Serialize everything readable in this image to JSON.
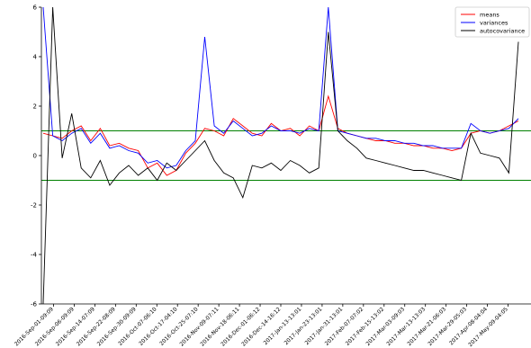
{
  "chart_data": {
    "type": "line",
    "ylim": [
      -6,
      6
    ],
    "yticks": [
      -6,
      -4,
      -2,
      0,
      2,
      4,
      6
    ],
    "grid": false,
    "legend_position": "top-right",
    "xtick_labels": [
      "2016-Sep-01-09:09",
      "2016-Sep-06-09:09",
      "2016-Sep-14-07:09",
      "2016-Sep-22-08:09",
      "2016-Sep-30-09:09",
      "2016-Oct-07-06:10",
      "2016-Oct-17-04:10",
      "2016-Oct-25-07:10",
      "2016-Nov-09-07:11",
      "2016-Nov-18-06:11",
      "2016-Dec-01-06:12",
      "2016-Dec-14-16:12",
      "2017-Jan-13-13:01",
      "2017-Jan-23-13:01",
      "2017-Jan-31-13:01",
      "2017-Feb-07-07:02",
      "2017-Feb-15-13:02",
      "2017-Mar-03-09:03",
      "2017-Mar-13-13:03",
      "2017-Mar-21-06:03",
      "2017-Mar-29-05:03",
      "2017-Apr-08-04:04",
      "2017-May-09-04:05"
    ],
    "hlines": [
      {
        "y": 1,
        "color": "#008000"
      },
      {
        "y": -1,
        "color": "#008000"
      }
    ],
    "x_index": [
      0,
      1,
      2,
      3,
      4,
      5,
      6,
      7,
      8,
      9,
      10,
      11,
      12,
      13,
      14,
      15,
      16,
      17,
      18,
      19,
      20,
      21,
      22,
      23,
      24,
      25,
      26,
      27,
      28,
      29,
      30,
      31,
      32,
      33,
      34,
      35,
      36,
      37,
      38,
      39,
      40,
      41,
      42,
      43,
      44,
      45,
      46,
      47,
      48,
      49,
      50
    ],
    "series": [
      {
        "name": "means",
        "color": "#ff0000",
        "values": [
          0.9,
          0.8,
          0.7,
          1.0,
          1.2,
          0.6,
          1.1,
          0.4,
          0.5,
          0.3,
          0.2,
          -0.5,
          -0.3,
          -0.8,
          -0.6,
          0.1,
          0.5,
          1.1,
          1.0,
          0.8,
          1.5,
          1.2,
          0.9,
          0.8,
          1.3,
          1.0,
          1.1,
          0.8,
          1.2,
          1.0,
          2.4,
          1.1,
          0.9,
          0.8,
          0.7,
          0.6,
          0.6,
          0.5,
          0.5,
          0.4,
          0.4,
          0.3,
          0.3,
          0.2,
          0.3,
          0.9,
          1.0,
          0.9,
          1.0,
          1.2,
          1.4
        ]
      },
      {
        "name": "variances",
        "color": "#0000ff",
        "values": [
          6.0,
          0.8,
          0.6,
          0.9,
          1.1,
          0.5,
          0.9,
          0.3,
          0.4,
          0.2,
          0.1,
          -0.3,
          -0.2,
          -0.5,
          -0.4,
          0.2,
          0.6,
          4.8,
          1.2,
          0.9,
          1.4,
          1.1,
          0.8,
          0.9,
          1.2,
          1.0,
          1.0,
          0.9,
          1.1,
          1.0,
          6.0,
          1.0,
          0.9,
          0.8,
          0.7,
          0.7,
          0.6,
          0.6,
          0.5,
          0.5,
          0.4,
          0.4,
          0.3,
          0.3,
          0.3,
          1.3,
          1.0,
          0.9,
          1.0,
          1.1,
          1.5
        ]
      },
      {
        "name": "autocovariance",
        "color": "#000000",
        "values": [
          -6.0,
          6.0,
          -0.1,
          1.7,
          -0.5,
          -0.9,
          -0.2,
          -1.2,
          -0.7,
          -0.4,
          -0.8,
          -0.5,
          -1.0,
          -0.3,
          -0.6,
          -0.2,
          0.2,
          0.6,
          -0.2,
          -0.7,
          -0.9,
          -1.7,
          -0.4,
          -0.5,
          -0.3,
          -0.6,
          -0.2,
          -0.4,
          -0.7,
          -0.5,
          5.0,
          1.0,
          0.6,
          0.3,
          -0.1,
          -0.2,
          -0.3,
          -0.4,
          -0.5,
          -0.6,
          -0.6,
          -0.7,
          -0.8,
          -0.9,
          -1.0,
          0.9,
          0.1,
          0.0,
          -0.1,
          -0.7,
          4.6
        ]
      }
    ]
  }
}
